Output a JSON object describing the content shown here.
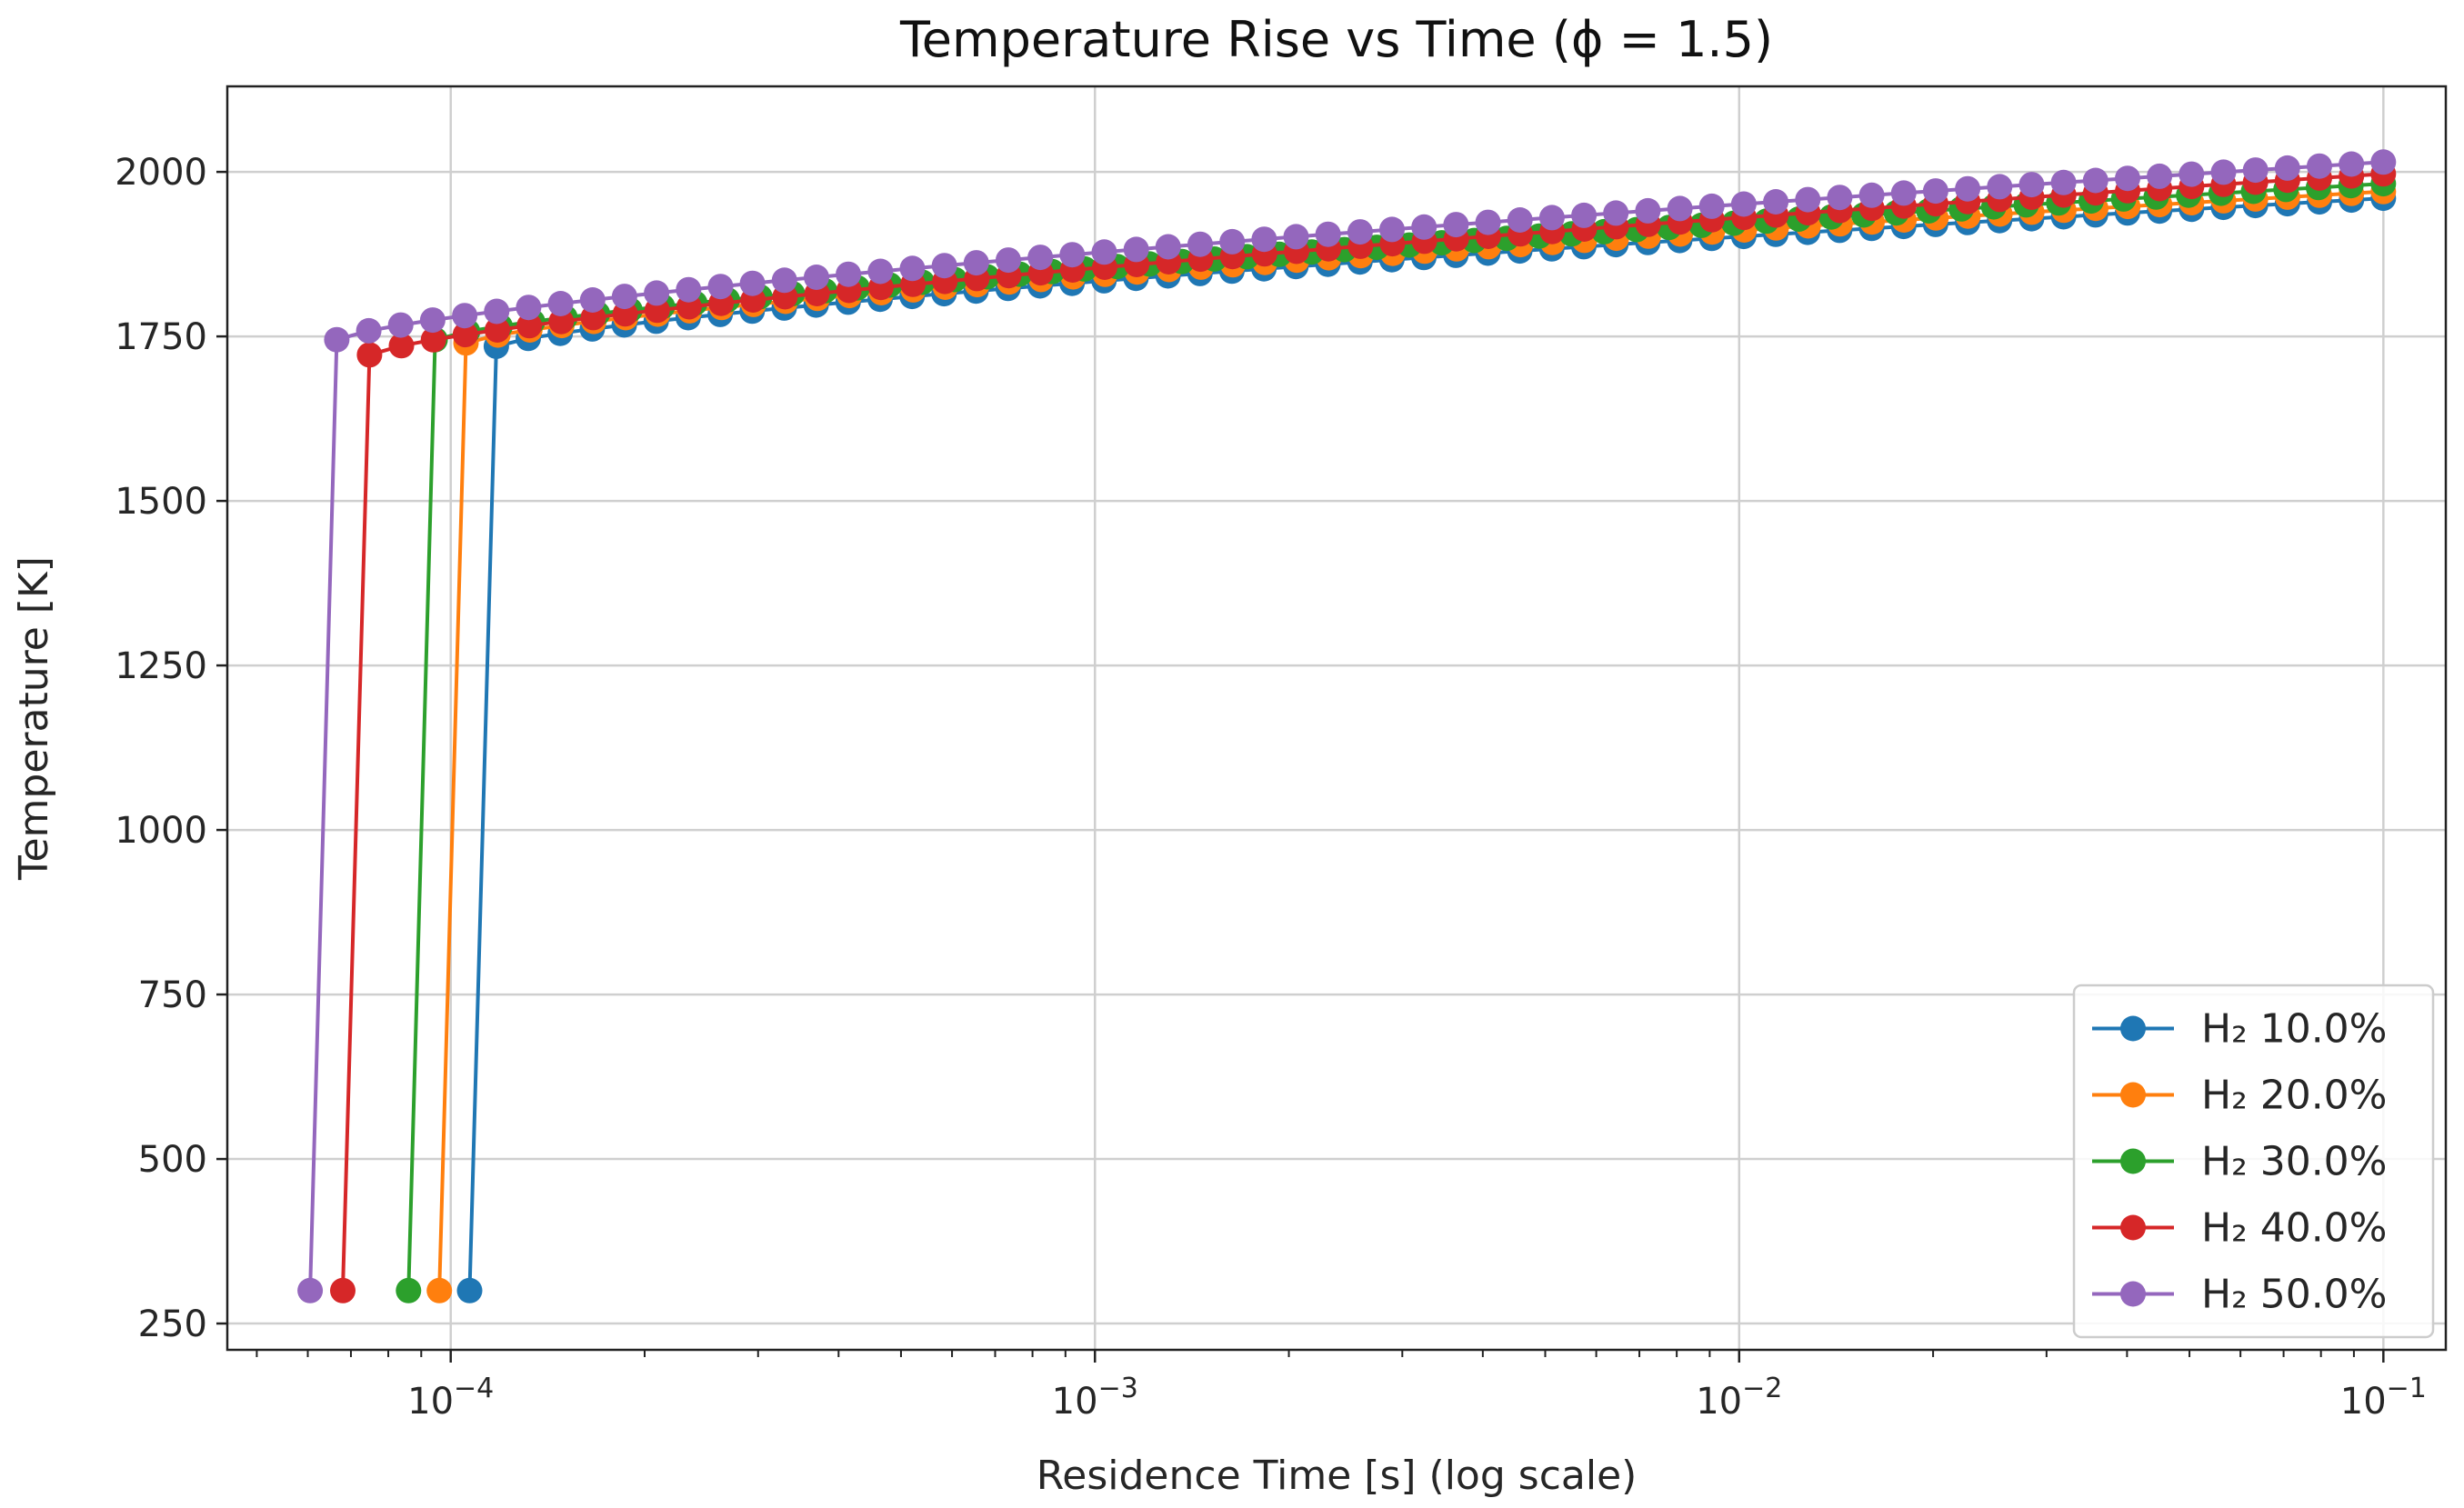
{
  "chart_data": {
    "type": "line",
    "title": "Temperature Rise vs Time (ϕ = 1.5)",
    "xlabel": "Residence Time [s] (log scale)",
    "ylabel": "Temperature [K]",
    "xscale": "log",
    "xlim": [
      4.5e-05,
      0.125
    ],
    "ylim": [
      210,
      2130
    ],
    "grid": true,
    "legend_position": "lower-right",
    "x_ticks": [
      {
        "value": 0.0001,
        "base": "10",
        "exp": "−4"
      },
      {
        "value": 0.001,
        "base": "10",
        "exp": "−3"
      },
      {
        "value": 0.01,
        "base": "10",
        "exp": "−2"
      },
      {
        "value": 0.1,
        "base": "10",
        "exp": "−1"
      }
    ],
    "y_ticks": [
      250,
      500,
      750,
      1000,
      1250,
      1500,
      1750,
      2000
    ],
    "t_end": 0.1,
    "points_per_decade": 20,
    "series": [
      {
        "name": "H₂ 10.0%",
        "color": "#1f77b4",
        "t_ign": 0.000107,
        "T_initial": 300,
        "T_first": 1735,
        "T_end": 1960
      },
      {
        "name": "H₂ 20.0%",
        "color": "#ff7f0e",
        "t_ign": 9.6e-05,
        "T_initial": 300,
        "T_first": 1740,
        "T_end": 1970
      },
      {
        "name": "H₂ 30.0%",
        "color": "#2ca02c",
        "t_ign": 8.6e-05,
        "T_initial": 300,
        "T_first": 1745,
        "T_end": 1982
      },
      {
        "name": "H₂ 40.0%",
        "color": "#d62728",
        "t_ign": 6.8e-05,
        "T_initial": 300,
        "T_first": 1722,
        "T_end": 1997
      },
      {
        "name": "H₂ 50.0%",
        "color": "#9467bd",
        "t_ign": 6.05e-05,
        "T_initial": 300,
        "T_first": 1745,
        "T_end": 2015
      }
    ]
  }
}
